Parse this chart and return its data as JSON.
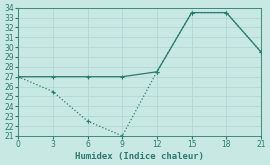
{
  "line1_x": [
    0,
    3,
    6,
    9,
    12,
    15,
    18,
    21
  ],
  "line1_y": [
    27,
    27,
    27,
    27,
    27.5,
    33.5,
    33.5,
    29.5
  ],
  "line2_x": [
    0,
    3,
    6,
    9,
    12,
    15,
    18,
    21
  ],
  "line2_y": [
    27,
    25.5,
    22.5,
    21,
    27.5,
    33.5,
    33.5,
    29.5
  ],
  "color": "#2d7a6e",
  "bg_color": "#c8e8e4",
  "grid_color": "#b0d8d4",
  "xlabel": "Humidex (Indice chaleur)",
  "xlim": [
    0,
    21
  ],
  "ylim": [
    21,
    34
  ],
  "xticks": [
    0,
    3,
    6,
    9,
    12,
    15,
    18,
    21
  ],
  "yticks": [
    21,
    22,
    23,
    24,
    25,
    26,
    27,
    28,
    29,
    30,
    31,
    32,
    33,
    34
  ],
  "markersize": 3,
  "linewidth": 0.9,
  "tick_labelsize": 5.5,
  "xlabel_fontsize": 6.5
}
